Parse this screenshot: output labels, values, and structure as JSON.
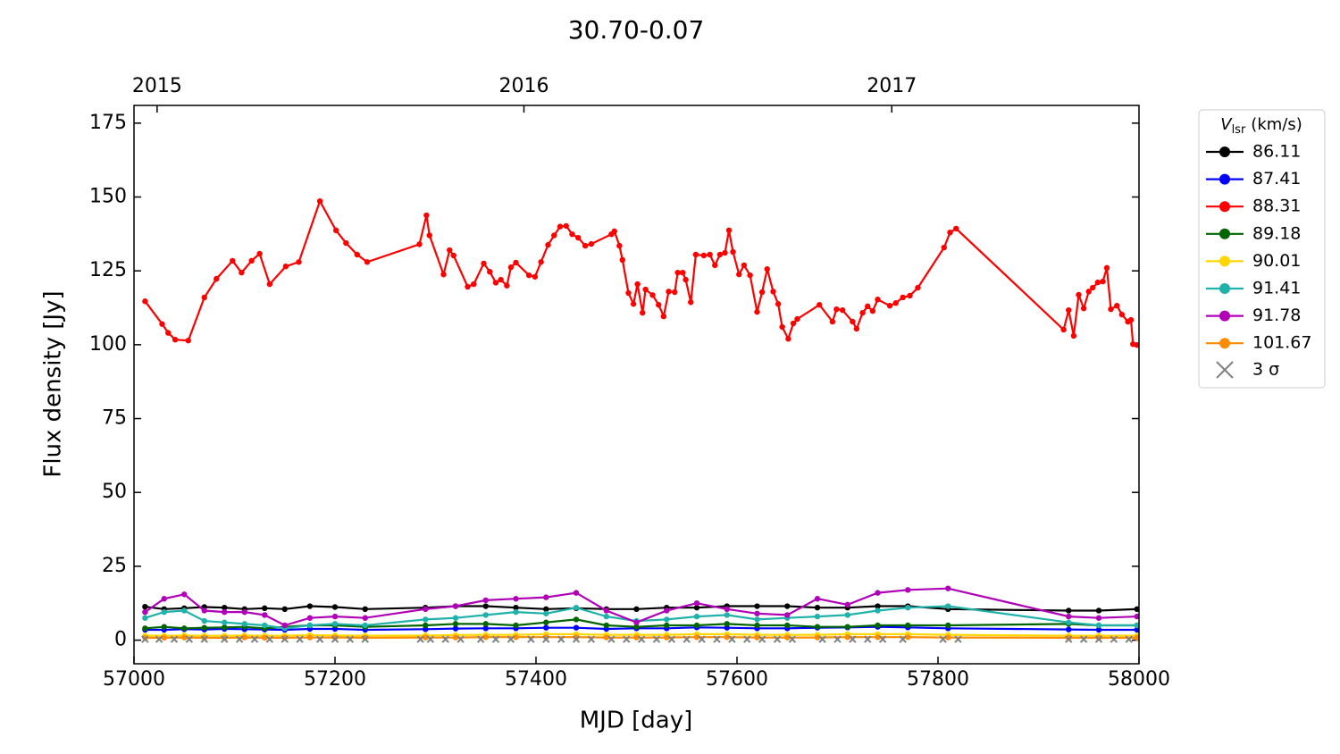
{
  "chart_data": {
    "type": "line",
    "title": "30.70-0.07",
    "xlabel": "MJD [day]",
    "ylabel": "Flux density [Jy]",
    "xlim": [
      57000,
      58000
    ],
    "ylim": [
      -8,
      181
    ],
    "xticks": [
      57000,
      57200,
      57400,
      57600,
      57800,
      58000
    ],
    "yticks": [
      0,
      25,
      50,
      75,
      100,
      125,
      150,
      175
    ],
    "x2ticks": [
      {
        "value": 57023,
        "label": "2015"
      },
      {
        "value": 57388,
        "label": "2016"
      },
      {
        "value": 57754,
        "label": "2017"
      }
    ],
    "legend_title": {
      "main": "V",
      "sub": "lsr",
      "unit": "(km/s)"
    },
    "legend": "outside right",
    "series": [
      {
        "name": "86.11",
        "color": "#000000",
        "marker": "o",
        "x": [
          57011,
          57030,
          57050,
          57070,
          57090,
          57110,
          57130,
          57150,
          57175,
          57200,
          57230,
          57290,
          57320,
          57350,
          57380,
          57410,
          57440,
          57470,
          57500,
          57530,
          57560,
          57590,
          57620,
          57650,
          57680,
          57710,
          57740,
          57770,
          57810,
          57930,
          57960,
          57998
        ],
        "values": [
          11.3,
          10.5,
          10.8,
          11.2,
          11,
          10.5,
          10.8,
          10.5,
          11.5,
          11.2,
          10.5,
          11,
          11.5,
          11.5,
          11,
          10.5,
          10.8,
          10.5,
          10.5,
          11,
          11,
          11.5,
          11.5,
          11.5,
          11,
          11,
          11.5,
          11.5,
          10.5,
          10,
          10,
          10.5
        ]
      },
      {
        "name": "87.41",
        "color": "#0000ff",
        "marker": "o",
        "x": [
          57011,
          57030,
          57050,
          57070,
          57090,
          57110,
          57130,
          57150,
          57175,
          57200,
          57230,
          57290,
          57320,
          57350,
          57380,
          57410,
          57440,
          57470,
          57500,
          57530,
          57560,
          57590,
          57620,
          57650,
          57680,
          57710,
          57740,
          57770,
          57810,
          57930,
          57960,
          57998
        ],
        "values": [
          3.5,
          3.5,
          3.7,
          3.6,
          3.8,
          3.7,
          3.6,
          3.5,
          3.8,
          3.8,
          3.5,
          3.7,
          3.9,
          4,
          4,
          4.2,
          4.2,
          3.8,
          4,
          4,
          4.3,
          4.2,
          4,
          4,
          4.2,
          4.3,
          4.5,
          4.3,
          4,
          3.6,
          3.5,
          3.5
        ]
      },
      {
        "name": "88.31",
        "color": "#ff0000",
        "marker": "o",
        "x": [
          57011,
          57028,
          57034,
          57041,
          57054,
          57070,
          57082,
          57098,
          57107,
          57117,
          57125,
          57135,
          57151,
          57164,
          57185,
          57201,
          57211,
          57222,
          57232,
          57284,
          57291,
          57294,
          57308,
          57314,
          57318,
          57332,
          57338,
          57348,
          57354,
          57360,
          57365,
          57371,
          57375,
          57380,
          57393,
          57399,
          57405,
          57412,
          57418,
          57424,
          57430,
          57436,
          57442,
          57449,
          57455,
          57475,
          57478,
          57483,
          57486,
          57492,
          57497,
          57501,
          57506,
          57509,
          57516,
          57522,
          57527,
          57532,
          57538,
          57541,
          57546,
          57549,
          57554,
          57559,
          57567,
          57573,
          57578,
          57583,
          57588,
          57592,
          57596,
          57602,
          57607,
          57613,
          57620,
          57625,
          57630,
          57636,
          57641,
          57645,
          57651,
          57656,
          57660,
          57682,
          57695,
          57699,
          57705,
          57715,
          57719,
          57725,
          57730,
          57735,
          57740,
          57752,
          57758,
          57765,
          57772,
          57780,
          57806,
          57812,
          57818,
          57925,
          57930,
          57935,
          57940,
          57945,
          57950,
          57954,
          57959,
          57964,
          57968,
          57972,
          57978,
          57983,
          57989,
          57992,
          57994,
          57998
        ],
        "values": [
          114.7,
          107,
          104,
          101.7,
          101.4,
          116,
          122.3,
          128.4,
          124.4,
          128.4,
          130.8,
          120.5,
          126.5,
          128,
          148.6,
          138.7,
          134.4,
          130.5,
          128,
          134,
          143.8,
          137,
          123.8,
          132,
          130.2,
          119.6,
          120.5,
          127.5,
          124.7,
          121,
          122,
          120,
          126.2,
          127.8,
          123.5,
          123,
          128,
          133.8,
          137,
          140,
          140.2,
          137.4,
          136.2,
          133.5,
          134.1,
          137.4,
          138.4,
          133.5,
          128.7,
          117.5,
          113.8,
          120.5,
          110.8,
          118.7,
          116.8,
          113.5,
          109.6,
          118,
          117.8,
          124.4,
          124.4,
          122,
          114.4,
          130.5,
          130.2,
          130.5,
          126.9,
          130.5,
          131.1,
          138.7,
          131.4,
          123.8,
          126.9,
          123.5,
          111.1,
          117.8,
          125.6,
          118,
          113.8,
          106,
          102,
          107.2,
          108.7,
          113.5,
          107.8,
          112,
          111.7,
          107.8,
          105.4,
          110.8,
          113,
          111.4,
          115.3,
          113.2,
          114.1,
          116,
          116.6,
          119.3,
          132.9,
          138,
          139.3,
          105.1,
          111.7,
          103,
          116.9,
          112.3,
          118,
          119.3,
          121.1,
          121.4,
          126,
          112,
          113.2,
          110.2,
          107.8,
          108.4,
          100.2,
          99.9
        ]
      },
      {
        "name": "89.18",
        "color": "#006400",
        "marker": "o",
        "x": [
          57011,
          57030,
          57050,
          57070,
          57090,
          57110,
          57130,
          57150,
          57175,
          57200,
          57230,
          57290,
          57320,
          57350,
          57380,
          57410,
          57440,
          57470,
          57500,
          57530,
          57560,
          57590,
          57620,
          57650,
          57680,
          57710,
          57740,
          57770,
          57810,
          57930,
          57960,
          57998
        ],
        "values": [
          4,
          4.5,
          4,
          4.2,
          4.3,
          4.5,
          4,
          4.5,
          5,
          5,
          4.5,
          5,
          5.5,
          5.5,
          5,
          6,
          7,
          5,
          4.5,
          5,
          5,
          5.5,
          5,
          5,
          4.5,
          4.5,
          5,
          5,
          5,
          5.5,
          5,
          5
        ]
      },
      {
        "name": "90.01",
        "color": "#ffd700",
        "marker": "o",
        "x": [
          57011,
          57030,
          57050,
          57070,
          57090,
          57110,
          57130,
          57150,
          57175,
          57200,
          57230,
          57290,
          57320,
          57350,
          57380,
          57410,
          57440,
          57470,
          57500,
          57530,
          57560,
          57590,
          57620,
          57650,
          57680,
          57710,
          57740,
          57770,
          57810,
          57930,
          57960,
          57998
        ],
        "values": [
          1.5,
          1.5,
          1.6,
          1.5,
          1.5,
          1.6,
          1.5,
          1.5,
          1.7,
          1.6,
          1.5,
          1.6,
          1.7,
          1.8,
          1.8,
          2,
          2,
          1.8,
          1.8,
          1.8,
          2,
          2,
          1.8,
          1.8,
          1.8,
          2,
          2,
          2,
          1.8,
          1.5,
          1.5,
          1.5
        ]
      },
      {
        "name": "91.41",
        "color": "#20b2aa",
        "marker": "o",
        "x": [
          57011,
          57030,
          57050,
          57070,
          57090,
          57110,
          57130,
          57150,
          57175,
          57200,
          57230,
          57290,
          57320,
          57350,
          57380,
          57410,
          57440,
          57470,
          57500,
          57530,
          57560,
          57590,
          57620,
          57650,
          57680,
          57710,
          57740,
          57770,
          57810,
          57930,
          57960,
          57998
        ],
        "values": [
          7.5,
          9.5,
          10,
          6.5,
          6,
          5.5,
          5,
          4,
          5,
          5.5,
          5,
          7,
          7.5,
          8.5,
          9.5,
          9,
          11,
          8,
          6.5,
          7,
          8,
          8.5,
          7,
          7.5,
          8,
          8.5,
          10,
          11,
          11.5,
          6,
          5,
          5
        ]
      },
      {
        "name": "91.78",
        "color": "#b000b8",
        "marker": "o",
        "x": [
          57011,
          57030,
          57050,
          57070,
          57090,
          57110,
          57130,
          57150,
          57175,
          57200,
          57230,
          57290,
          57320,
          57350,
          57380,
          57410,
          57440,
          57470,
          57500,
          57530,
          57560,
          57590,
          57620,
          57650,
          57680,
          57710,
          57740,
          57770,
          57810,
          57930,
          57960,
          57998
        ],
        "values": [
          9.5,
          14,
          15.5,
          10,
          9.5,
          9.5,
          8.5,
          5,
          7.5,
          8,
          7.5,
          10.5,
          11.5,
          13.5,
          14,
          14.5,
          16,
          10,
          6,
          10,
          12.5,
          10.5,
          9,
          8.5,
          14,
          12,
          16,
          17,
          17.5,
          8,
          7.5,
          8
        ]
      },
      {
        "name": "101.67",
        "color": "#ff8c00",
        "marker": "o",
        "x": [
          57011,
          57030,
          57050,
          57070,
          57090,
          57110,
          57130,
          57150,
          57175,
          57200,
          57230,
          57290,
          57320,
          57350,
          57380,
          57410,
          57440,
          57470,
          57500,
          57530,
          57560,
          57590,
          57620,
          57650,
          57680,
          57710,
          57740,
          57770,
          57810,
          57930,
          57960,
          57998
        ],
        "values": [
          0.8,
          0.8,
          0.9,
          0.8,
          0.8,
          0.9,
          0.8,
          0.8,
          0.9,
          0.9,
          0.8,
          0.9,
          0.9,
          1,
          1,
          1,
          1,
          0.9,
          0.9,
          0.9,
          1,
          1,
          0.9,
          0.9,
          0.9,
          1,
          1,
          1,
          0.9,
          0.8,
          0.8,
          0.8
        ]
      },
      {
        "name": "3 σ",
        "color": "#808080",
        "marker": "x",
        "x": [
          57011,
          57025,
          57040,
          57055,
          57070,
          57090,
          57105,
          57120,
          57135,
          57150,
          57165,
          57185,
          57200,
          57215,
          57230,
          57285,
          57295,
          57310,
          57325,
          57345,
          57360,
          57375,
          57395,
          57410,
          57425,
          57440,
          57455,
          57475,
          57490,
          57505,
          57520,
          57535,
          57550,
          57565,
          57580,
          57595,
          57610,
          57625,
          57640,
          57655,
          57685,
          57700,
          57715,
          57730,
          57745,
          57765,
          57805,
          57820,
          57930,
          57945,
          57960,
          57975,
          57990
        ],
        "values": [
          0.3,
          0.3,
          0.3,
          0.3,
          0.3,
          0.3,
          0.3,
          0.3,
          0.3,
          0.3,
          0.3,
          0.3,
          0.3,
          0.3,
          0.3,
          0.3,
          0.3,
          0.3,
          0.3,
          0.3,
          0.3,
          0.3,
          0.3,
          0.3,
          0.3,
          0.3,
          0.3,
          0.3,
          0.3,
          0.3,
          0.3,
          0.3,
          0.3,
          0.3,
          0.3,
          0.3,
          0.3,
          0.3,
          0.3,
          0.3,
          0.3,
          0.3,
          0.3,
          0.3,
          0.3,
          0.3,
          0.3,
          0.3,
          0.3,
          0.3,
          0.3,
          0.3,
          0.3
        ]
      }
    ]
  }
}
